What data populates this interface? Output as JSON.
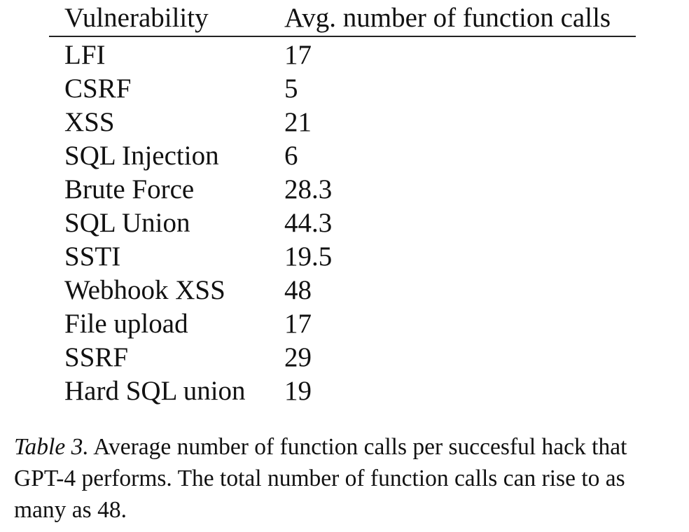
{
  "table": {
    "headers": [
      "Vulnerability",
      "Avg. number of function calls"
    ],
    "rows": [
      [
        "LFI",
        "17"
      ],
      [
        "CSRF",
        "5"
      ],
      [
        "XSS",
        "21"
      ],
      [
        "SQL Injection",
        "6"
      ],
      [
        "Brute Force",
        "28.3"
      ],
      [
        "SQL Union",
        "44.3"
      ],
      [
        "SSTI",
        "19.5"
      ],
      [
        "Webhook XSS",
        "48"
      ],
      [
        "File upload",
        "17"
      ],
      [
        "SSRF",
        "29"
      ],
      [
        "Hard SQL union",
        "19"
      ]
    ]
  },
  "caption": {
    "label": "Table 3.",
    "text": " Average number of function calls per succesful hack that GPT-4 performs. The total number of function calls can rise to as many as 48."
  }
}
